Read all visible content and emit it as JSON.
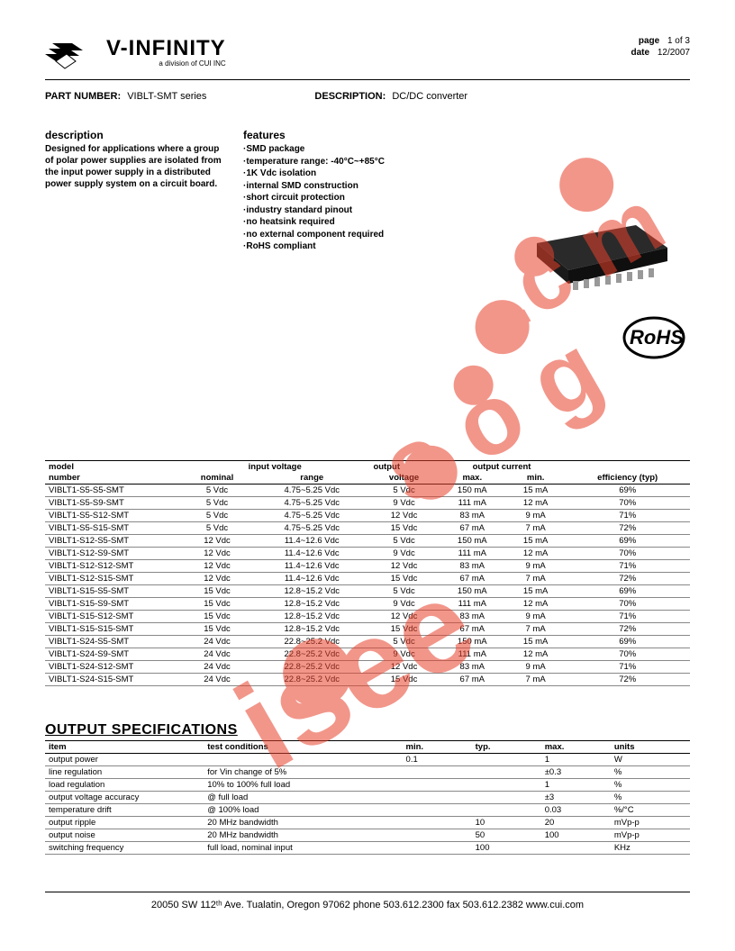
{
  "header": {
    "logo_main": "V-INFINITY",
    "logo_sub": "a division of CUI INC",
    "page_label": "page",
    "page_value": "1 of 3",
    "date_label": "date",
    "date_value": "12/2007"
  },
  "part": {
    "label": "PART NUMBER:",
    "value": "VIBLT-SMT series",
    "desc_label": "DESCRIPTION:",
    "desc_value": "DC/DC converter"
  },
  "description": {
    "heading": "description",
    "body": "Designed for applications where a group of polar power supplies are isolated from the input power supply in a distributed power supply system on a circuit board."
  },
  "features": {
    "heading": "features",
    "items": [
      "SMD package",
      "temperature range: -40°C~+85°C",
      "1K Vdc isolation",
      "internal SMD construction",
      "short circuit protection",
      "industry standard pinout",
      "no heatsink required",
      "no external component required",
      "RoHS compliant"
    ]
  },
  "rohs_text": "RoHS",
  "table1": {
    "head_row1": [
      "model",
      "input voltage",
      "",
      "output",
      "output current",
      "",
      ""
    ],
    "head_row2": [
      "number",
      "nominal",
      "range",
      "voltage",
      "max.",
      "min.",
      "efficiency (typ)"
    ],
    "rows": [
      [
        "VIBLT1-S5-S5-SMT",
        "5 Vdc",
        "4.75~5.25 Vdc",
        "5 Vdc",
        "150 mA",
        "15 mA",
        "69%"
      ],
      [
        "VIBLT1-S5-S9-SMT",
        "5 Vdc",
        "4.75~5.25 Vdc",
        "9 Vdc",
        "111 mA",
        "12 mA",
        "70%"
      ],
      [
        "VIBLT1-S5-S12-SMT",
        "5 Vdc",
        "4.75~5.25 Vdc",
        "12 Vdc",
        "83 mA",
        "9 mA",
        "71%"
      ],
      [
        "VIBLT1-S5-S15-SMT",
        "5 Vdc",
        "4.75~5.25 Vdc",
        "15 Vdc",
        "67 mA",
        "7 mA",
        "72%"
      ],
      [
        "VIBLT1-S12-S5-SMT",
        "12 Vdc",
        "11.4~12.6 Vdc",
        "5 Vdc",
        "150 mA",
        "15 mA",
        "69%"
      ],
      [
        "VIBLT1-S12-S9-SMT",
        "12 Vdc",
        "11.4~12.6 Vdc",
        "9 Vdc",
        "111 mA",
        "12 mA",
        "70%"
      ],
      [
        "VIBLT1-S12-S12-SMT",
        "12 Vdc",
        "11.4~12.6 Vdc",
        "12 Vdc",
        "83 mA",
        "9 mA",
        "71%"
      ],
      [
        "VIBLT1-S12-S15-SMT",
        "12 Vdc",
        "11.4~12.6 Vdc",
        "15 Vdc",
        "67 mA",
        "7 mA",
        "72%"
      ],
      [
        "VIBLT1-S15-S5-SMT",
        "15 Vdc",
        "12.8~15.2 Vdc",
        "5 Vdc",
        "150 mA",
        "15 mA",
        "69%"
      ],
      [
        "VIBLT1-S15-S9-SMT",
        "15 Vdc",
        "12.8~15.2 Vdc",
        "9 Vdc",
        "111 mA",
        "12 mA",
        "70%"
      ],
      [
        "VIBLT1-S15-S12-SMT",
        "15 Vdc",
        "12.8~15.2 Vdc",
        "12 Vdc",
        "83 mA",
        "9 mA",
        "71%"
      ],
      [
        "VIBLT1-S15-S15-SMT",
        "15 Vdc",
        "12.8~15.2 Vdc",
        "15 Vdc",
        "67 mA",
        "7 mA",
        "72%"
      ],
      [
        "VIBLT1-S24-S5-SMT",
        "24 Vdc",
        "22.8~25.2 Vdc",
        "5 Vdc",
        "150 mA",
        "15 mA",
        "69%"
      ],
      [
        "VIBLT1-S24-S9-SMT",
        "24 Vdc",
        "22.8~25.2 Vdc",
        "9 Vdc",
        "111 mA",
        "12 mA",
        "70%"
      ],
      [
        "VIBLT1-S24-S12-SMT",
        "24 Vdc",
        "22.8~25.2 Vdc",
        "12 Vdc",
        "83 mA",
        "9 mA",
        "71%"
      ],
      [
        "VIBLT1-S24-S15-SMT",
        "24 Vdc",
        "22.8~25.2 Vdc",
        "15 Vdc",
        "67 mA",
        "7 mA",
        "72%"
      ]
    ]
  },
  "spec_title": "OUTPUT SPECIFICATIONS",
  "table2": {
    "headers": [
      "item",
      "test conditions",
      "min.",
      "typ.",
      "max.",
      "units"
    ],
    "rows": [
      [
        "output power",
        "",
        "0.1",
        "",
        "1",
        "W"
      ],
      [
        "line regulation",
        "for Vin change of 5%",
        "",
        "",
        "±0.3",
        "%"
      ],
      [
        "load regulation",
        "10% to 100% full load",
        "",
        "",
        "1",
        "%"
      ],
      [
        "output voltage accuracy",
        "@ full load",
        "",
        "",
        "±3",
        "%"
      ],
      [
        "temperature drift",
        "@ 100% load",
        "",
        "",
        "0.03",
        "%/°C"
      ],
      [
        "output ripple",
        "20 MHz bandwidth",
        "",
        "10",
        "20",
        "mVp-p"
      ],
      [
        "output noise",
        "20 MHz bandwidth",
        "",
        "50",
        "100",
        "mVp-p"
      ],
      [
        "switching frequency",
        "full load, nominal input",
        "",
        "100",
        "",
        "KHz"
      ]
    ]
  },
  "footer": {
    "text": "20050 SW 112ᵗʰ Ave. Tualatin, Oregon 97062   phone 503.612.2300  fax 503.612.2382   www.cui.com"
  },
  "watermark": {
    "color": "#e8412c",
    "opacity": 0.55
  }
}
